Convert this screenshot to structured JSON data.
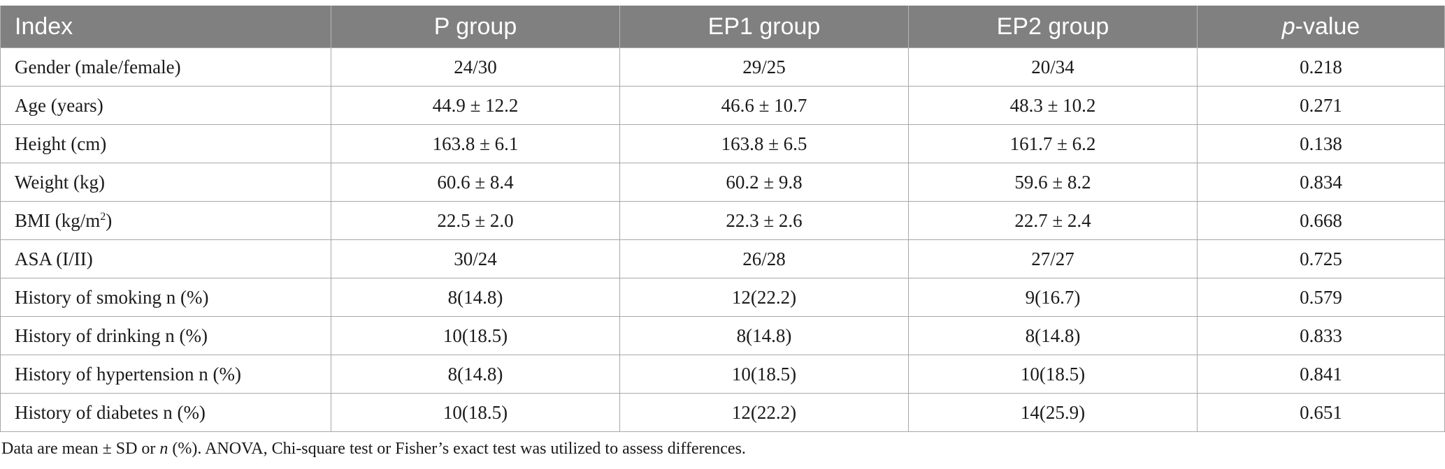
{
  "header": {
    "index": "Index",
    "p_group": "P group",
    "ep1_group": "EP1 group",
    "ep2_group": "EP2 group",
    "pvalue_p": "p",
    "pvalue_rest": "-value"
  },
  "rows": [
    {
      "index": "Gender (male/female)",
      "p": "24/30",
      "ep1": "29/25",
      "ep2": "20/34",
      "pvalue": "0.218"
    },
    {
      "index": "Age (years)",
      "p": "44.9 ± 12.2",
      "ep1": "46.6 ± 10.7",
      "ep2": "48.3 ± 10.2",
      "pvalue": "0.271"
    },
    {
      "index": "Height (cm)",
      "p": "163.8 ± 6.1",
      "ep1": "163.8 ± 6.5",
      "ep2": "161.7 ± 6.2",
      "pvalue": "0.138"
    },
    {
      "index": "Weight (kg)",
      "p": "60.6 ± 8.4",
      "ep1": "60.2 ± 9.8",
      "ep2": "59.6 ± 8.2",
      "pvalue": "0.834"
    },
    {
      "index_prefix": "BMI (kg/m",
      "index_sup": "2",
      "index_suffix": ")",
      "p": "22.5 ± 2.0",
      "ep1": "22.3 ± 2.6",
      "ep2": "22.7 ± 2.4",
      "pvalue": "0.668"
    },
    {
      "index": "ASA (I/II)",
      "p": "30/24",
      "ep1": "26/28",
      "ep2": "27/27",
      "pvalue": "0.725"
    },
    {
      "index": "History of smoking n (%)",
      "p": "8(14.8)",
      "ep1": "12(22.2)",
      "ep2": "9(16.7)",
      "pvalue": "0.579"
    },
    {
      "index": "History of drinking n (%)",
      "p": "10(18.5)",
      "ep1": "8(14.8)",
      "ep2": "8(14.8)",
      "pvalue": "0.833"
    },
    {
      "index": "History of hypertension n (%)",
      "p": "8(14.8)",
      "ep1": "10(18.5)",
      "ep2": "10(18.5)",
      "pvalue": "0.841"
    },
    {
      "index": "History of diabetes n (%)",
      "p": "10(18.5)",
      "ep1": "12(22.2)",
      "ep2": "14(25.9)",
      "pvalue": "0.651"
    }
  ],
  "footnote": {
    "part1": "Data are mean ± SD or ",
    "n": "n",
    "part2": " (%). ANOVA, Chi-square test or Fisher’s exact test was utilized to assess differences."
  }
}
